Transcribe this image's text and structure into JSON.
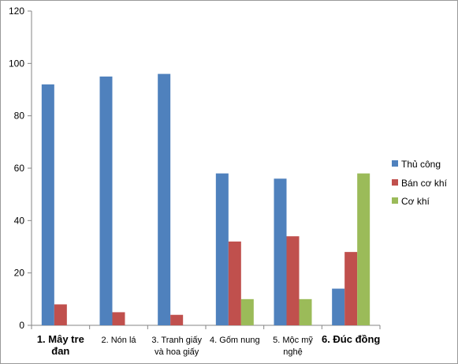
{
  "chart_data": {
    "type": "bar",
    "categories": [
      [
        "1. Mây tre",
        "đan"
      ],
      [
        "2. Nón lá"
      ],
      [
        "3. Tranh giấy",
        "và hoa giấy"
      ],
      [
        "4. Gốm nung"
      ],
      [
        "5. Mộc mỹ",
        "nghệ"
      ],
      [
        "6. Đúc đồng"
      ]
    ],
    "series": [
      {
        "name": "Thủ công",
        "color": "#4F81BD",
        "values": [
          92,
          95,
          96,
          58,
          56,
          14
        ]
      },
      {
        "name": "Bán cơ khí",
        "color": "#C0504D",
        "values": [
          8,
          5,
          4,
          32,
          34,
          28
        ]
      },
      {
        "name": "Cơ khí",
        "color": "#9BBB59",
        "values": [
          0,
          0,
          0,
          10,
          10,
          58
        ]
      }
    ],
    "ylim": [
      0,
      120
    ],
    "yticks": [
      0,
      20,
      40,
      60,
      80,
      100,
      120
    ],
    "grid": false,
    "legend": "right"
  }
}
